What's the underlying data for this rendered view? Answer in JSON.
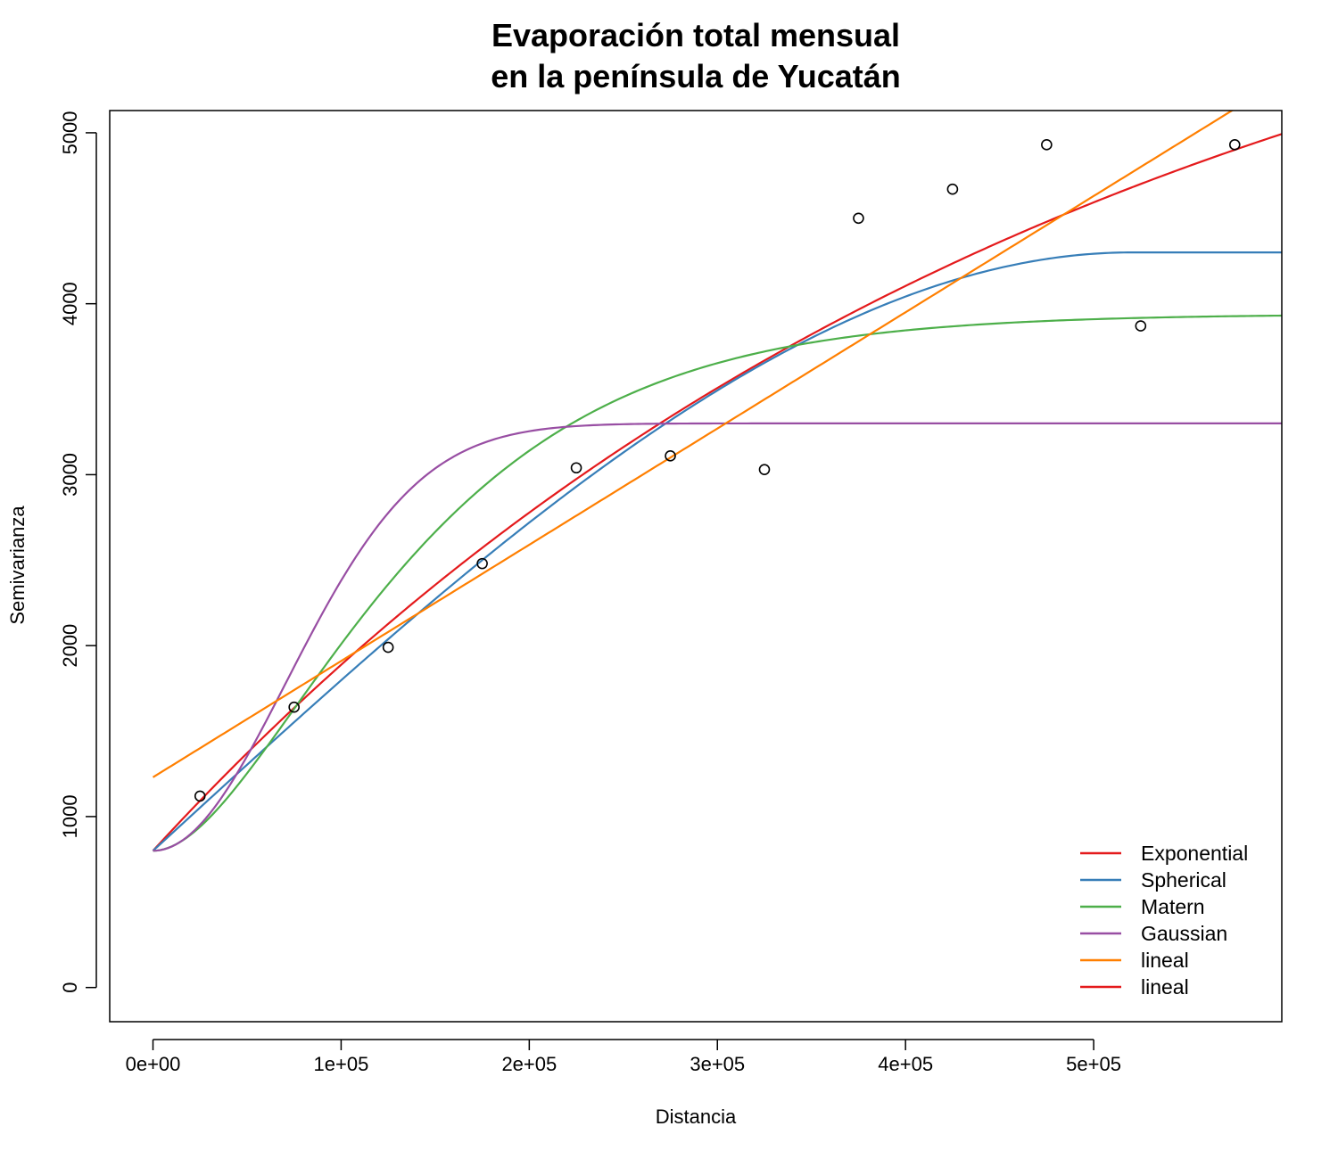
{
  "chart_data": {
    "type": "scatter",
    "title_lines": [
      "Evaporación total mensual",
      "en la península de Yucatán"
    ],
    "xlabel": "Distancia",
    "ylabel": "Semivarianza",
    "xlim": [
      -23000,
      600000
    ],
    "ylim": [
      -200,
      5130
    ],
    "x_ticks": [
      {
        "value": 0,
        "label": "0e+00"
      },
      {
        "value": 100000,
        "label": "1e+05"
      },
      {
        "value": 200000,
        "label": "2e+05"
      },
      {
        "value": 300000,
        "label": "3e+05"
      },
      {
        "value": 400000,
        "label": "4e+05"
      },
      {
        "value": 500000,
        "label": "5e+05"
      }
    ],
    "y_ticks": [
      {
        "value": 0,
        "label": "0"
      },
      {
        "value": 1000,
        "label": "1000"
      },
      {
        "value": 2000,
        "label": "2000"
      },
      {
        "value": 3000,
        "label": "3000"
      },
      {
        "value": 4000,
        "label": "4000"
      },
      {
        "value": 5000,
        "label": "5000"
      }
    ],
    "points": [
      {
        "x": 25000,
        "y": 1120
      },
      {
        "x": 75000,
        "y": 1640
      },
      {
        "x": 125000,
        "y": 1990
      },
      {
        "x": 175000,
        "y": 2480
      },
      {
        "x": 225000,
        "y": 3040
      },
      {
        "x": 275000,
        "y": 3110
      },
      {
        "x": 325000,
        "y": 3030
      },
      {
        "x": 375000,
        "y": 4500
      },
      {
        "x": 425000,
        "y": 4670
      },
      {
        "x": 475000,
        "y": 4930
      },
      {
        "x": 525000,
        "y": 3870
      },
      {
        "x": 575000,
        "y": 4930
      }
    ],
    "series": [
      {
        "name": "Exponential",
        "color": "#e41a1c",
        "model": "exponential",
        "nugget": 800,
        "psill": 6000,
        "range": 500000
      },
      {
        "name": "Spherical",
        "color": "#377eb8",
        "model": "spherical",
        "nugget": 800,
        "psill": 3500,
        "range": 520000
      },
      {
        "name": "Matern",
        "color": "#4daf4a",
        "model": "matern",
        "nugget": 800,
        "psill": 3140,
        "range": 75000
      },
      {
        "name": "Gaussian",
        "color": "#984ea3",
        "model": "gaussian",
        "nugget": 800,
        "psill": 2500,
        "range": 100000
      },
      {
        "name": "lineal",
        "color": "#ff7f00",
        "model": "linear",
        "intercept": 1230,
        "slope": 0.0068
      },
      {
        "name": "lineal",
        "color": "#e41a1c",
        "model": "none"
      }
    ],
    "legend_position": "bottom-right",
    "grid": false
  }
}
